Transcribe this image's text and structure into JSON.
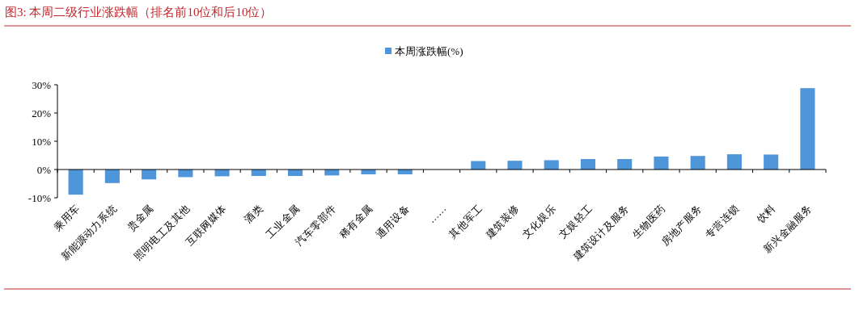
{
  "chart_data": {
    "type": "bar",
    "title": "图3:   本周二级行业涨跌幅（排名前10位和后10位）",
    "categories": [
      "乘用车",
      "新能源动力系统",
      "贵金属",
      "照明电工及其他",
      "互联网媒体",
      "酒类",
      "工业金属",
      "汽车零部件",
      "稀有金属",
      "通用设备",
      "……",
      "其他军工",
      "建筑装修",
      "文化娱乐",
      "文娱轻工",
      "建筑设计及服务",
      "生物医药",
      "房地产服务",
      "专营连锁",
      "饮料",
      "新兴金融服务"
    ],
    "series": [
      {
        "name": "本周涨跌幅(%)",
        "color": "#4e95d9",
        "values": [
          -8.9,
          -4.8,
          -3.5,
          -2.7,
          -2.4,
          -2.3,
          -2.3,
          -2.1,
          -1.7,
          -1.7,
          null,
          3.0,
          3.1,
          3.3,
          3.7,
          3.7,
          4.6,
          4.8,
          5.4,
          5.3,
          28.8
        ]
      }
    ],
    "ylim": [
      -10,
      30
    ],
    "yticks": [
      {
        "value": -10,
        "label": "-10%"
      },
      {
        "value": 0,
        "label": "0%"
      },
      {
        "value": 10,
        "label": "10%"
      },
      {
        "value": 20,
        "label": "20%"
      },
      {
        "value": 30,
        "label": "30%"
      }
    ],
    "legend": "top"
  }
}
